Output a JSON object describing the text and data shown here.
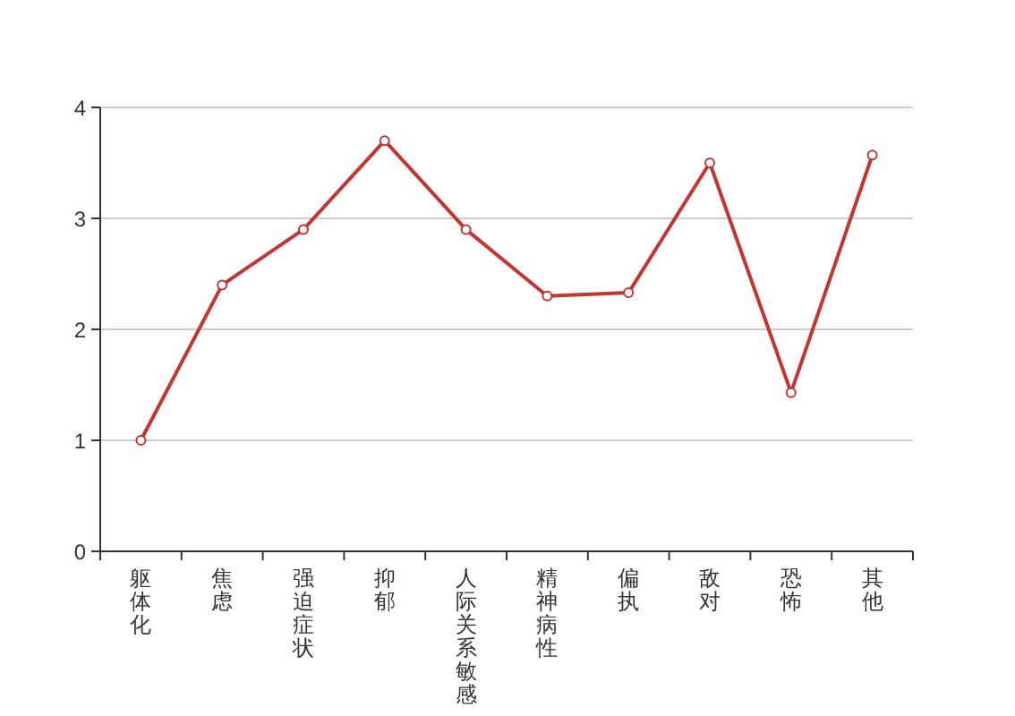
{
  "chart_data": {
    "type": "line",
    "categories": [
      "躯体化",
      "焦虑",
      "强迫症状",
      "抑郁",
      "人际关系敏感",
      "精神病性",
      "偏执",
      "敌对",
      "恐怖",
      "其他"
    ],
    "series": [
      {
        "color": "#c23531",
        "values": [
          1.0,
          2.4,
          2.9,
          3.7,
          2.9,
          2.3,
          2.33,
          3.5,
          1.43,
          3.57
        ]
      }
    ],
    "ylim": [
      0,
      4
    ],
    "yticks": [
      0,
      1,
      2,
      3,
      4
    ],
    "grid": "y",
    "marker": "circle",
    "line_style": "solid"
  }
}
